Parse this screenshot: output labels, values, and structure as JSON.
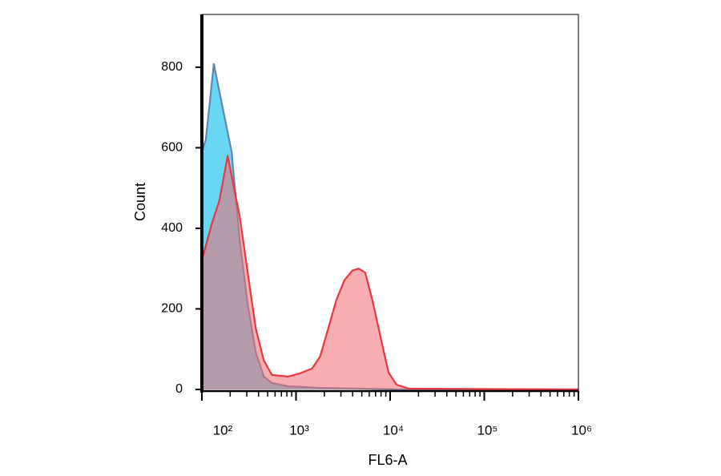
{
  "chart_data": {
    "type": "area",
    "xlabel": "FL6-A",
    "ylabel": "Count",
    "xscale": "log",
    "xlim": [
      100,
      1000000
    ],
    "xticks": [
      {
        "value": 100,
        "label": "10²"
      },
      {
        "value": 1000,
        "label": "10³"
      },
      {
        "value": 10000,
        "label": "10⁴"
      },
      {
        "value": 100000,
        "label": "10⁵"
      },
      {
        "value": 1000000,
        "label": "10⁶"
      }
    ],
    "xminorticks": [
      200,
      300,
      400,
      500,
      600,
      700,
      800,
      900,
      2000,
      3000,
      4000,
      5000,
      6000,
      7000,
      8000,
      9000,
      20000,
      30000,
      40000,
      50000,
      60000,
      70000,
      80000,
      90000,
      200000,
      300000,
      400000,
      500000,
      600000,
      700000,
      800000,
      900000
    ],
    "ylim": [
      -4,
      931
    ],
    "yticks": [
      0,
      200,
      400,
      600,
      800
    ],
    "series": [
      {
        "color": "#4fcff2",
        "line_color": "#5f86b0",
        "x": [
          100,
          110,
          134,
          170,
          207,
          252,
          307,
          374,
          455,
          554,
          822,
          1804,
          12910,
          1000000
        ],
        "values": [
          590,
          620,
          808,
          688,
          590,
          370,
          211,
          92,
          32,
          16,
          8,
          4,
          0,
          0
        ]
      },
      {
        "color": "#f26b70",
        "line_color": "#e8383d",
        "x": [
          100,
          127,
          154,
          188,
          215,
          252,
          307,
          374,
          455,
          554,
          822,
          1104,
          1482,
          1804,
          2198,
          2675,
          3258,
          3965,
          4642,
          5433,
          6488,
          7887,
          9614,
          11700,
          15730,
          1000000
        ],
        "values": [
          320,
          410,
          470,
          580,
          510,
          430,
          290,
          151,
          72,
          36,
          32,
          40,
          52,
          82,
          151,
          221,
          271,
          295,
          300,
          290,
          221,
          131,
          42,
          12,
          2,
          0
        ]
      }
    ]
  }
}
